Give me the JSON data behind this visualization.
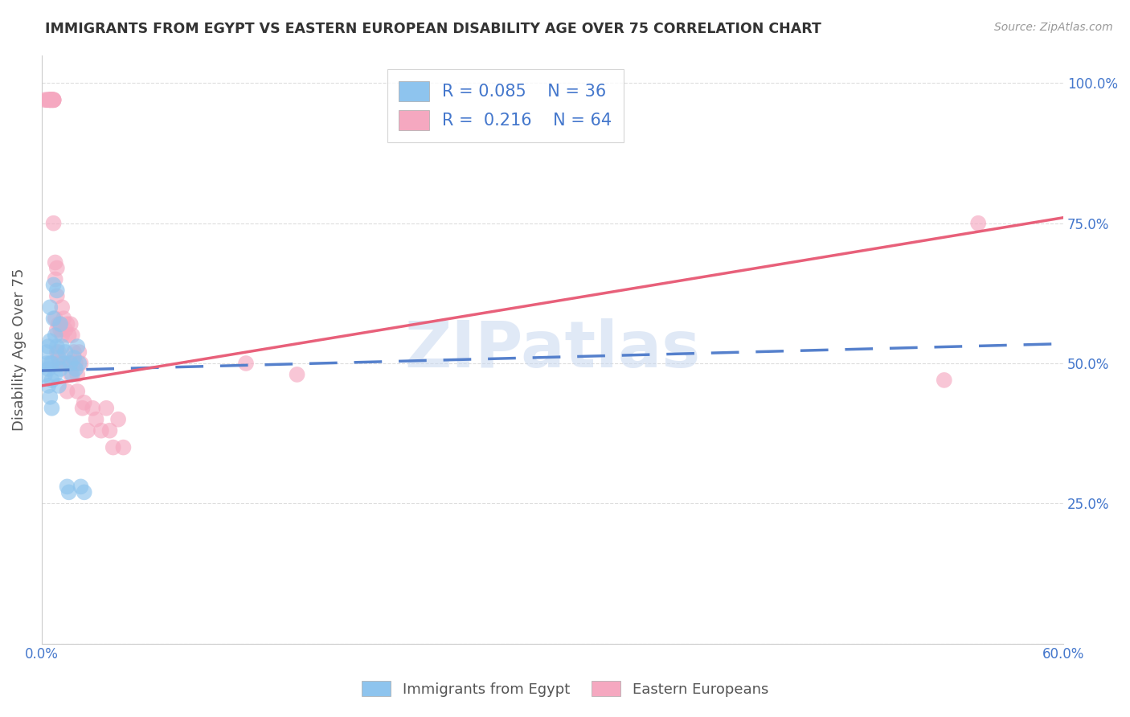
{
  "title": "IMMIGRANTS FROM EGYPT VS EASTERN EUROPEAN DISABILITY AGE OVER 75 CORRELATION CHART",
  "source": "Source: ZipAtlas.com",
  "ylabel": "Disability Age Over 75",
  "xlim": [
    0.0,
    0.6
  ],
  "ylim": [
    0.0,
    1.05
  ],
  "ytick_vals": [
    0.0,
    0.25,
    0.5,
    0.75,
    1.0
  ],
  "xtick_vals": [
    0.0,
    0.1,
    0.2,
    0.3,
    0.4,
    0.5,
    0.6
  ],
  "legend_r1": "0.085",
  "legend_n1": "36",
  "legend_r2": "0.216",
  "legend_n2": "64",
  "blue_color": "#8EC4EE",
  "pink_color": "#F5A8C0",
  "blue_line_color": "#5580CC",
  "pink_line_color": "#E8607A",
  "title_color": "#333333",
  "axis_label_color": "#4477CC",
  "watermark_color": "#C8D8F0",
  "egypt_x": [
    0.002,
    0.003,
    0.003,
    0.004,
    0.004,
    0.004,
    0.005,
    0.005,
    0.005,
    0.005,
    0.006,
    0.006,
    0.006,
    0.007,
    0.007,
    0.008,
    0.008,
    0.009,
    0.009,
    0.01,
    0.01,
    0.011,
    0.011,
    0.012,
    0.013,
    0.014,
    0.015,
    0.016,
    0.017,
    0.018,
    0.019,
    0.02,
    0.021,
    0.022,
    0.023,
    0.025
  ],
  "egypt_y": [
    0.48,
    0.5,
    0.52,
    0.46,
    0.49,
    0.53,
    0.44,
    0.5,
    0.54,
    0.6,
    0.42,
    0.47,
    0.5,
    0.58,
    0.64,
    0.55,
    0.48,
    0.53,
    0.63,
    0.46,
    0.51,
    0.49,
    0.57,
    0.53,
    0.5,
    0.52,
    0.28,
    0.27,
    0.5,
    0.48,
    0.51,
    0.49,
    0.53,
    0.5,
    0.28,
    0.27
  ],
  "eastern_x": [
    0.002,
    0.003,
    0.004,
    0.004,
    0.005,
    0.005,
    0.005,
    0.005,
    0.005,
    0.006,
    0.006,
    0.006,
    0.006,
    0.007,
    0.007,
    0.007,
    0.007,
    0.007,
    0.008,
    0.008,
    0.008,
    0.009,
    0.009,
    0.009,
    0.009,
    0.01,
    0.01,
    0.01,
    0.011,
    0.011,
    0.012,
    0.012,
    0.013,
    0.014,
    0.015,
    0.015,
    0.015,
    0.016,
    0.016,
    0.017,
    0.017,
    0.018,
    0.018,
    0.019,
    0.02,
    0.021,
    0.021,
    0.022,
    0.023,
    0.024,
    0.025,
    0.027,
    0.03,
    0.032,
    0.035,
    0.038,
    0.04,
    0.042,
    0.045,
    0.048,
    0.12,
    0.15,
    0.53,
    0.55
  ],
  "eastern_y": [
    0.97,
    0.97,
    0.97,
    0.97,
    0.97,
    0.97,
    0.97,
    0.97,
    0.97,
    0.97,
    0.97,
    0.97,
    0.97,
    0.97,
    0.97,
    0.97,
    0.97,
    0.75,
    0.68,
    0.65,
    0.58,
    0.67,
    0.62,
    0.56,
    0.52,
    0.57,
    0.52,
    0.5,
    0.56,
    0.5,
    0.6,
    0.55,
    0.58,
    0.56,
    0.57,
    0.5,
    0.45,
    0.55,
    0.5,
    0.57,
    0.48,
    0.55,
    0.5,
    0.52,
    0.5,
    0.48,
    0.45,
    0.52,
    0.5,
    0.42,
    0.43,
    0.38,
    0.42,
    0.4,
    0.38,
    0.42,
    0.38,
    0.35,
    0.4,
    0.35,
    0.5,
    0.48,
    0.47,
    0.75
  ],
  "blue_line_x0": 0.0,
  "blue_line_y0": 0.487,
  "blue_line_x1": 0.6,
  "blue_line_y1": 0.535,
  "pink_line_x0": 0.0,
  "pink_line_y0": 0.46,
  "pink_line_x1": 0.6,
  "pink_line_y1": 0.76
}
